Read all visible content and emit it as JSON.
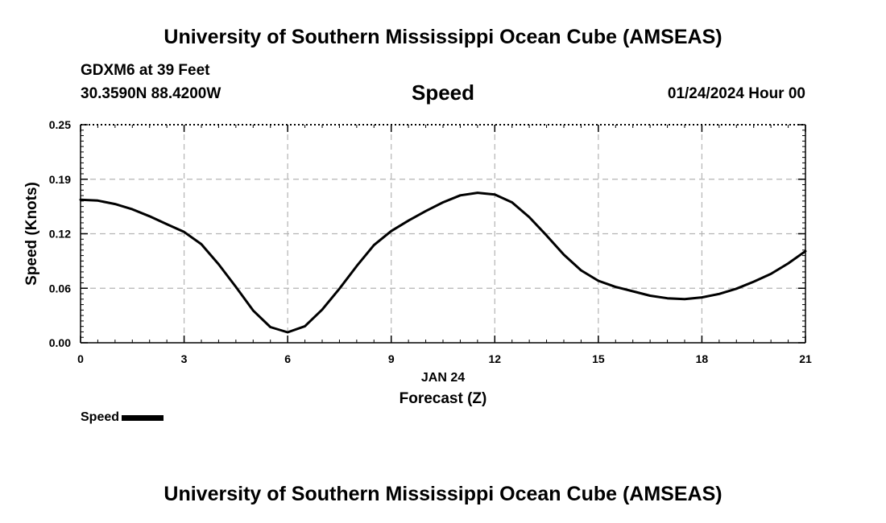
{
  "header": {
    "title": "University of Southern Mississippi Ocean Cube (AMSEAS)",
    "station_line": "GDXM6 at 39 Feet",
    "coords_line": "30.3590N  88.4200W",
    "chart_name": "Speed",
    "datetime_line": "01/24/2024 Hour 00"
  },
  "footer": {
    "title": "University of Southern Mississippi Ocean Cube (AMSEAS)"
  },
  "legend": {
    "label": "Speed"
  },
  "colors": {
    "line": "#000000",
    "grid": "#b4b4b4"
  },
  "chart_data": {
    "type": "line",
    "title": "Speed",
    "xlabel": "Forecast (Z)",
    "xlabel_date": "JAN 24",
    "ylabel": "Speed (Knots)",
    "xlim": [
      0,
      21
    ],
    "ylim": [
      0,
      0.25
    ],
    "x_ticks": [
      0,
      3,
      6,
      9,
      12,
      15,
      18,
      21
    ],
    "x_tick_labels": [
      "0",
      "3",
      "6",
      "9",
      "12",
      "15",
      "18",
      "21"
    ],
    "y_ticks": [
      0,
      0.0625,
      0.125,
      0.1875,
      0.25
    ],
    "y_tick_labels": [
      "0.00",
      "0.06",
      "0.12",
      "0.19",
      "0.25"
    ],
    "grid": true,
    "legend_position": "bottom-left",
    "series": [
      {
        "name": "Speed",
        "x": [
          0,
          0.5,
          1,
          1.5,
          2,
          2.5,
          3,
          3.5,
          4,
          4.5,
          5,
          5.5,
          6,
          6.5,
          7,
          7.5,
          8,
          8.5,
          9,
          9.5,
          10,
          10.5,
          11,
          11.5,
          12,
          12.5,
          13,
          13.5,
          14,
          14.5,
          15,
          15.5,
          16,
          16.5,
          17,
          17.5,
          18,
          18.5,
          19,
          19.5,
          20,
          20.5,
          21
        ],
        "values": [
          0.164,
          0.163,
          0.159,
          0.153,
          0.145,
          0.136,
          0.127,
          0.113,
          0.09,
          0.064,
          0.037,
          0.018,
          0.012,
          0.019,
          0.038,
          0.062,
          0.088,
          0.112,
          0.128,
          0.14,
          0.151,
          0.161,
          0.169,
          0.172,
          0.17,
          0.161,
          0.144,
          0.123,
          0.101,
          0.083,
          0.071,
          0.064,
          0.059,
          0.054,
          0.051,
          0.05,
          0.052,
          0.056,
          0.062,
          0.07,
          0.079,
          0.091,
          0.105
        ]
      }
    ]
  }
}
